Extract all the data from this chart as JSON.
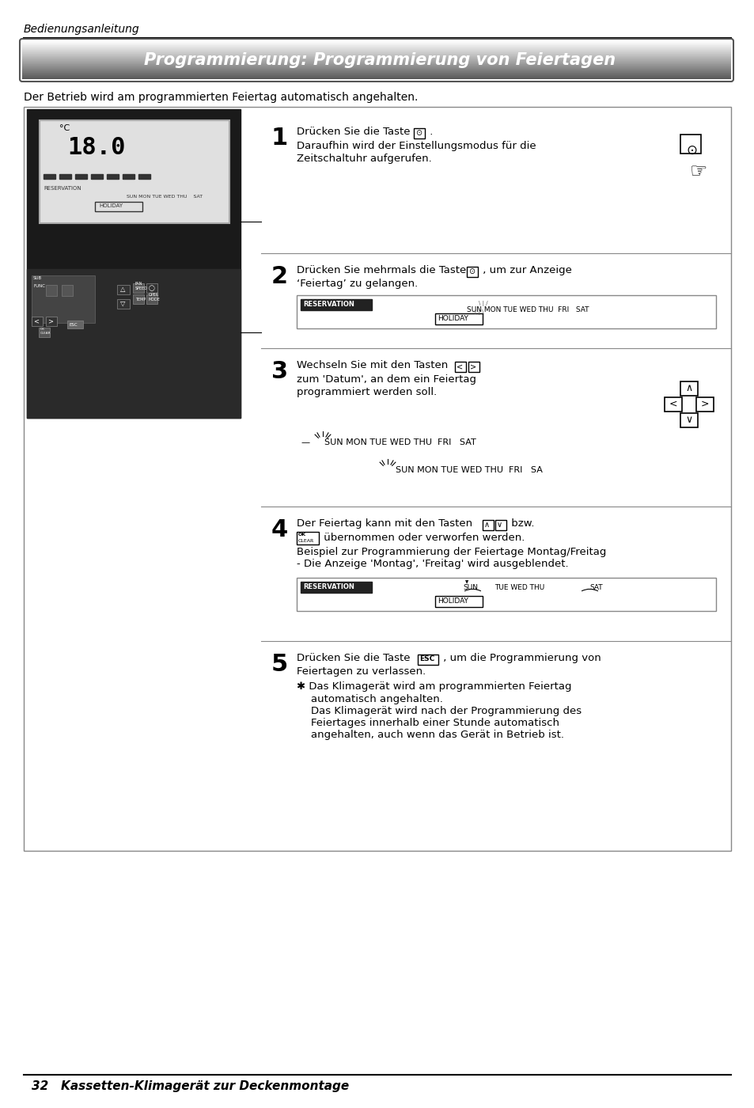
{
  "page_bg": "#ffffff",
  "header_italic": "Bedienungsanleitung",
  "title": "Programmierung: Programmierung von Feiertagen",
  "subtitle": "Der Betrieb wird am programmierten Feiertag automatisch angehalten.",
  "footer_text": "32   Kassetten-Klimagerät zur Deckenmontage",
  "step1_num": "1",
  "step1_lines": [
    "Drücken Sie die Taste        .",
    "Daraufhin wird der Einstellungsmodus für die",
    "Zeitschaltuhr aufgerufen."
  ],
  "step2_num": "2",
  "step2_lines": [
    "Drücken Sie mehrmals die Taste        , um zur Anzeige",
    "‘Feiertag’ zu gelangen."
  ],
  "step3_num": "3",
  "step3_lines": [
    "Wechseln Sie mit den Tasten        ",
    "zum ‘Datum’, an dem ein Feiertag",
    "programmiert werden soll."
  ],
  "step3_diagram1": "— SUN MON TUE WED THU  FRI   SAT",
  "step3_diagram2": "    SUN MON TUE WED THU  FRI   SA",
  "step4_num": "4",
  "step4_lines": [
    "Der Feiertag kann mit den Tasten          bzw.",
    "       übernommen oder verworfen werden.",
    "Beispiel zur Programmierung der Feiertage Montag/Freitag",
    "- Die Anzeige ‘Montag’, ‘Freitag’ wird ausgeblendet."
  ],
  "step5_num": "5",
  "step5_lines": [
    "Drücken Sie die Taste       , um die Programmierung von",
    "Feiertagen zu verlassen.",
    "✱ Das Klimagerät wird am programmierten Feiertag",
    "     automatisch angehalten.",
    "     Das Klimagerät wird nach der Programmierung des",
    "     Feiertages innerhalb einer Stunde automatisch",
    "     angehalten, auch wenn das Gerät in Betrieb ist."
  ]
}
